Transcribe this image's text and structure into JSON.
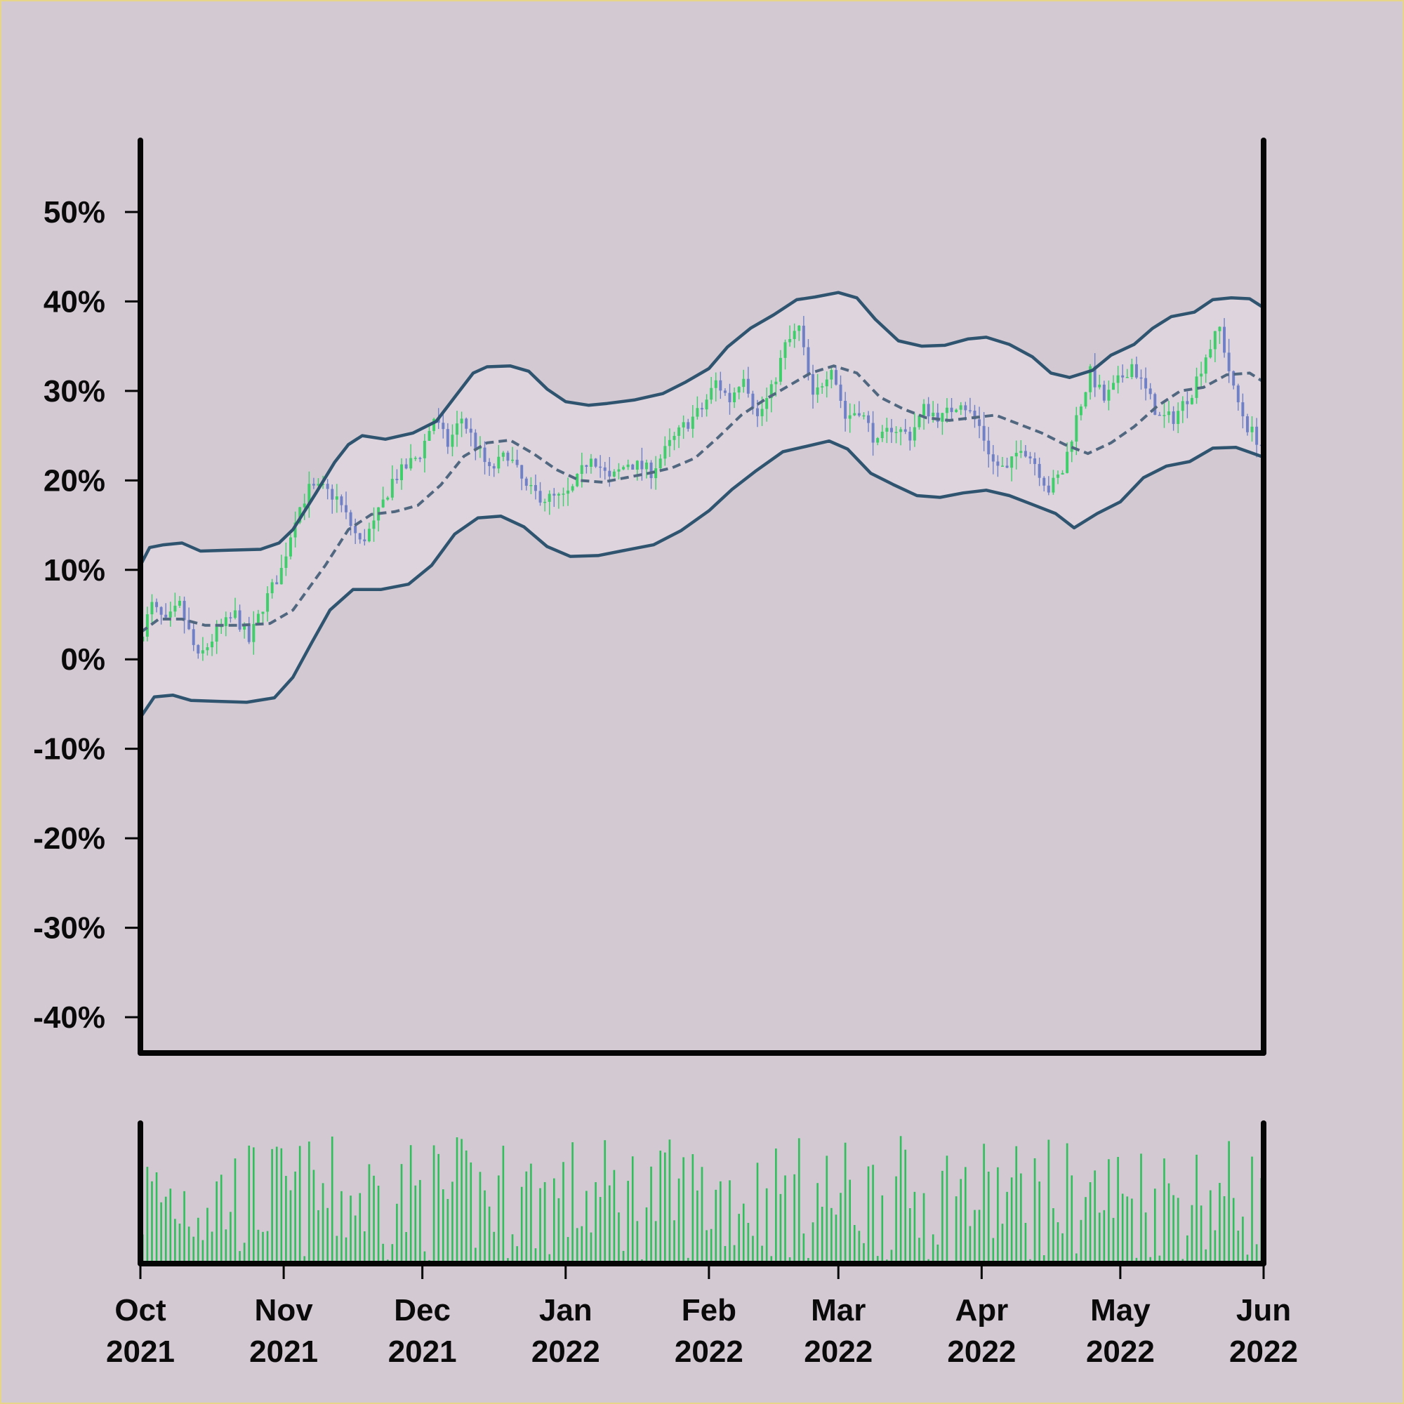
{
  "chart_data": {
    "type": "candlestick",
    "title": "",
    "xlabel": "",
    "ylabel": "",
    "y_unit": "percent",
    "ylim": [
      -44,
      58
    ],
    "yticks": [
      50,
      40,
      30,
      20,
      10,
      0,
      -10,
      -20,
      -30,
      -40
    ],
    "ytick_labels": [
      "50%",
      "40%",
      "30%",
      "20%",
      "10%",
      "0%",
      "-10%",
      "-20%",
      "-30%",
      "-40%"
    ],
    "x_range": [
      "2021-10-01",
      "2022-06-01"
    ],
    "xticks": [
      {
        "date": "2021-10-01",
        "month": "Oct",
        "year": "2021"
      },
      {
        "date": "2021-11-01",
        "month": "Nov",
        "year": "2021"
      },
      {
        "date": "2021-12-01",
        "month": "Dec",
        "year": "2021"
      },
      {
        "date": "2022-01-01",
        "month": "Jan",
        "year": "2022"
      },
      {
        "date": "2022-02-01",
        "month": "Feb",
        "year": "2022"
      },
      {
        "date": "2022-03-01",
        "month": "Mar",
        "year": "2022"
      },
      {
        "date": "2022-04-01",
        "month": "Apr",
        "year": "2022"
      },
      {
        "date": "2022-05-01",
        "month": "May",
        "year": "2022"
      },
      {
        "date": "2022-06-01",
        "month": "Jun",
        "year": "2022"
      }
    ],
    "grid": false,
    "legend": "none",
    "price_path": [
      [
        "2021-10-01",
        2
      ],
      [
        "2021-10-04",
        6
      ],
      [
        "2021-10-07",
        4
      ],
      [
        "2021-10-10",
        6
      ],
      [
        "2021-10-14",
        0
      ],
      [
        "2021-10-18",
        3
      ],
      [
        "2021-10-22",
        5
      ],
      [
        "2021-10-25",
        2
      ],
      [
        "2021-10-28",
        6
      ],
      [
        "2021-11-01",
        10
      ],
      [
        "2021-11-04",
        16
      ],
      [
        "2021-11-07",
        19
      ],
      [
        "2021-11-10",
        19
      ],
      [
        "2021-11-13",
        18
      ],
      [
        "2021-11-15",
        16
      ],
      [
        "2021-11-18",
        13
      ],
      [
        "2021-11-21",
        15
      ],
      [
        "2021-11-25",
        20
      ],
      [
        "2021-11-29",
        22
      ],
      [
        "2021-12-01",
        23
      ],
      [
        "2021-12-04",
        27
      ],
      [
        "2021-12-07",
        24
      ],
      [
        "2021-12-10",
        27
      ],
      [
        "2021-12-13",
        24
      ],
      [
        "2021-12-16",
        21
      ],
      [
        "2021-12-20",
        23
      ],
      [
        "2021-12-24",
        19
      ],
      [
        "2021-12-28",
        18
      ],
      [
        "2022-01-01",
        18
      ],
      [
        "2022-01-03",
        19
      ],
      [
        "2022-01-07",
        23
      ],
      [
        "2022-01-11",
        20
      ],
      [
        "2022-01-15",
        22
      ],
      [
        "2022-01-20",
        21
      ],
      [
        "2022-01-24",
        24
      ],
      [
        "2022-01-27",
        26
      ],
      [
        "2022-01-31",
        28
      ],
      [
        "2022-02-03",
        31
      ],
      [
        "2022-02-06",
        29
      ],
      [
        "2022-02-09",
        32
      ],
      [
        "2022-02-12",
        27
      ],
      [
        "2022-02-15",
        30
      ],
      [
        "2022-02-18",
        35
      ],
      [
        "2022-02-21",
        37
      ],
      [
        "2022-02-24",
        29
      ],
      [
        "2022-02-28",
        33
      ],
      [
        "2022-03-03",
        27
      ],
      [
        "2022-03-06",
        28
      ],
      [
        "2022-03-10",
        24
      ],
      [
        "2022-03-13",
        26
      ],
      [
        "2022-03-17",
        25
      ],
      [
        "2022-03-20",
        28
      ],
      [
        "2022-03-24",
        27
      ],
      [
        "2022-03-28",
        29
      ],
      [
        "2022-04-01",
        26
      ],
      [
        "2022-04-04",
        22
      ],
      [
        "2022-04-07",
        21
      ],
      [
        "2022-04-10",
        24
      ],
      [
        "2022-04-13",
        22
      ],
      [
        "2022-04-16",
        19
      ],
      [
        "2022-04-19",
        21
      ],
      [
        "2022-04-22",
        27
      ],
      [
        "2022-04-25",
        32
      ],
      [
        "2022-04-28",
        29
      ],
      [
        "2022-05-01",
        31
      ],
      [
        "2022-05-04",
        33
      ],
      [
        "2022-05-07",
        30
      ],
      [
        "2022-05-10",
        27
      ],
      [
        "2022-05-13",
        27
      ],
      [
        "2022-05-17",
        30
      ],
      [
        "2022-05-20",
        34
      ],
      [
        "2022-05-23",
        37
      ],
      [
        "2022-05-26",
        30
      ],
      [
        "2022-05-29",
        26
      ],
      [
        "2022-06-01",
        24
      ]
    ],
    "moving_average": [
      [
        "2021-10-01",
        3
      ],
      [
        "2021-10-05",
        4.5
      ],
      [
        "2021-10-10",
        4.5
      ],
      [
        "2021-10-15",
        3.8
      ],
      [
        "2021-10-22",
        3.8
      ],
      [
        "2021-10-29",
        4
      ],
      [
        "2021-11-03",
        5.5
      ],
      [
        "2021-11-10",
        10.5
      ],
      [
        "2021-11-15",
        14.5
      ],
      [
        "2021-11-20",
        16.2
      ],
      [
        "2021-11-25",
        16.5
      ],
      [
        "2021-11-30",
        17.2
      ],
      [
        "2021-12-05",
        19.5
      ],
      [
        "2021-12-10",
        22.7
      ],
      [
        "2021-12-15",
        24.2
      ],
      [
        "2021-12-20",
        24.5
      ],
      [
        "2021-12-25",
        23
      ],
      [
        "2021-12-30",
        21.2
      ],
      [
        "2022-01-04",
        20
      ],
      [
        "2022-01-09",
        19.8
      ],
      [
        "2022-01-14",
        20.3
      ],
      [
        "2022-01-19",
        20.8
      ],
      [
        "2022-01-24",
        21.4
      ],
      [
        "2022-01-29",
        22.5
      ],
      [
        "2022-02-03",
        24.8
      ],
      [
        "2022-02-08",
        27.3
      ],
      [
        "2022-02-13",
        29
      ],
      [
        "2022-02-18",
        30.5
      ],
      [
        "2022-02-23",
        32
      ],
      [
        "2022-02-28",
        32.8
      ],
      [
        "2022-03-05",
        32
      ],
      [
        "2022-03-10",
        29.3
      ],
      [
        "2022-03-15",
        28
      ],
      [
        "2022-03-20",
        27
      ],
      [
        "2022-03-25",
        26.7
      ],
      [
        "2022-03-30",
        27
      ],
      [
        "2022-04-04",
        27.3
      ],
      [
        "2022-04-09",
        26.3
      ],
      [
        "2022-04-14",
        25.3
      ],
      [
        "2022-04-19",
        24
      ],
      [
        "2022-04-24",
        23
      ],
      [
        "2022-04-29",
        24.2
      ],
      [
        "2022-05-04",
        26
      ],
      [
        "2022-05-09",
        28.3
      ],
      [
        "2022-05-14",
        30
      ],
      [
        "2022-05-19",
        30.4
      ],
      [
        "2022-05-24",
        31.8
      ],
      [
        "2022-05-29",
        32
      ],
      [
        "2022-06-01",
        31
      ]
    ],
    "upper_band": [
      [
        "2021-10-01",
        10.5
      ],
      [
        "2021-10-03",
        12.5
      ],
      [
        "2021-10-06",
        12.8
      ],
      [
        "2021-10-10",
        13
      ],
      [
        "2021-10-14",
        12.1
      ],
      [
        "2021-10-20",
        12.2
      ],
      [
        "2021-10-27",
        12.3
      ],
      [
        "2021-10-31",
        13
      ],
      [
        "2021-11-03",
        14.5
      ],
      [
        "2021-11-08",
        18.6
      ],
      [
        "2021-11-12",
        22
      ],
      [
        "2021-11-15",
        24
      ],
      [
        "2021-11-18",
        25
      ],
      [
        "2021-11-23",
        24.6
      ],
      [
        "2021-11-29",
        25.3
      ],
      [
        "2021-12-04",
        26.6
      ],
      [
        "2021-12-08",
        29.3
      ],
      [
        "2021-12-12",
        32
      ],
      [
        "2021-12-15",
        32.7
      ],
      [
        "2021-12-20",
        32.8
      ],
      [
        "2021-12-24",
        32.2
      ],
      [
        "2021-12-28",
        30.2
      ],
      [
        "2022-01-01",
        28.8
      ],
      [
        "2022-01-06",
        28.4
      ],
      [
        "2022-01-10",
        28.6
      ],
      [
        "2022-01-16",
        29
      ],
      [
        "2022-01-22",
        29.7
      ],
      [
        "2022-01-27",
        31
      ],
      [
        "2022-02-01",
        32.5
      ],
      [
        "2022-02-05",
        34.9
      ],
      [
        "2022-02-10",
        37
      ],
      [
        "2022-02-15",
        38.5
      ],
      [
        "2022-02-20",
        40.2
      ],
      [
        "2022-02-24",
        40.5
      ],
      [
        "2022-03-01",
        41
      ],
      [
        "2022-03-05",
        40.4
      ],
      [
        "2022-03-09",
        38
      ],
      [
        "2022-03-14",
        35.6
      ],
      [
        "2022-03-19",
        35
      ],
      [
        "2022-03-24",
        35.1
      ],
      [
        "2022-03-29",
        35.8
      ],
      [
        "2022-04-02",
        36
      ],
      [
        "2022-04-07",
        35.2
      ],
      [
        "2022-04-12",
        33.8
      ],
      [
        "2022-04-16",
        32
      ],
      [
        "2022-04-20",
        31.5
      ],
      [
        "2022-04-25",
        32.3
      ],
      [
        "2022-04-29",
        34
      ],
      [
        "2022-05-04",
        35.2
      ],
      [
        "2022-05-08",
        37
      ],
      [
        "2022-05-12",
        38.3
      ],
      [
        "2022-05-17",
        38.8
      ],
      [
        "2022-05-21",
        40.2
      ],
      [
        "2022-05-25",
        40.4
      ],
      [
        "2022-05-29",
        40.3
      ],
      [
        "2022-06-01",
        39.3
      ]
    ],
    "lower_band": [
      [
        "2021-10-01",
        -6.5
      ],
      [
        "2021-10-04",
        -4.2
      ],
      [
        "2021-10-08",
        -4
      ],
      [
        "2021-10-12",
        -4.6
      ],
      [
        "2021-10-18",
        -4.7
      ],
      [
        "2021-10-24",
        -4.8
      ],
      [
        "2021-10-30",
        -4.3
      ],
      [
        "2021-11-03",
        -2
      ],
      [
        "2021-11-07",
        1.8
      ],
      [
        "2021-11-11",
        5.5
      ],
      [
        "2021-11-16",
        7.8
      ],
      [
        "2021-11-22",
        7.8
      ],
      [
        "2021-11-28",
        8.4
      ],
      [
        "2021-12-03",
        10.5
      ],
      [
        "2021-12-08",
        14
      ],
      [
        "2021-12-13",
        15.8
      ],
      [
        "2021-12-18",
        16
      ],
      [
        "2021-12-23",
        14.8
      ],
      [
        "2021-12-28",
        12.6
      ],
      [
        "2022-01-02",
        11.5
      ],
      [
        "2022-01-08",
        11.6
      ],
      [
        "2022-01-14",
        12.2
      ],
      [
        "2022-01-20",
        12.8
      ],
      [
        "2022-01-26",
        14.4
      ],
      [
        "2022-02-01",
        16.6
      ],
      [
        "2022-02-06",
        19
      ],
      [
        "2022-02-11",
        21
      ],
      [
        "2022-02-17",
        23.2
      ],
      [
        "2022-02-22",
        23.8
      ],
      [
        "2022-02-27",
        24.4
      ],
      [
        "2022-03-03",
        23.5
      ],
      [
        "2022-03-08",
        20.8
      ],
      [
        "2022-03-13",
        19.5
      ],
      [
        "2022-03-18",
        18.3
      ],
      [
        "2022-03-23",
        18.1
      ],
      [
        "2022-03-28",
        18.6
      ],
      [
        "2022-04-02",
        18.9
      ],
      [
        "2022-04-07",
        18.3
      ],
      [
        "2022-04-12",
        17.3
      ],
      [
        "2022-04-17",
        16.3
      ],
      [
        "2022-04-21",
        14.7
      ],
      [
        "2022-04-26",
        16.3
      ],
      [
        "2022-05-01",
        17.6
      ],
      [
        "2022-05-06",
        20.3
      ],
      [
        "2022-05-11",
        21.6
      ],
      [
        "2022-05-16",
        22.1
      ],
      [
        "2022-05-21",
        23.6
      ],
      [
        "2022-05-26",
        23.7
      ],
      [
        "2022-06-01",
        22.6
      ]
    ],
    "volume_relative_range": [
      0,
      1
    ],
    "colors": {
      "background": "#d3c9d3",
      "frame_border": "#e7d58a",
      "up_candle": "#3ecf6a",
      "down_candle": "#6f80c7",
      "volume_bar": "#2fbf5b",
      "band_line": "#2f5470",
      "band_fill": "#ddd4de",
      "ma_line": "#50677f",
      "axis": "#050505",
      "tick_text": "#0a0a0a"
    }
  }
}
